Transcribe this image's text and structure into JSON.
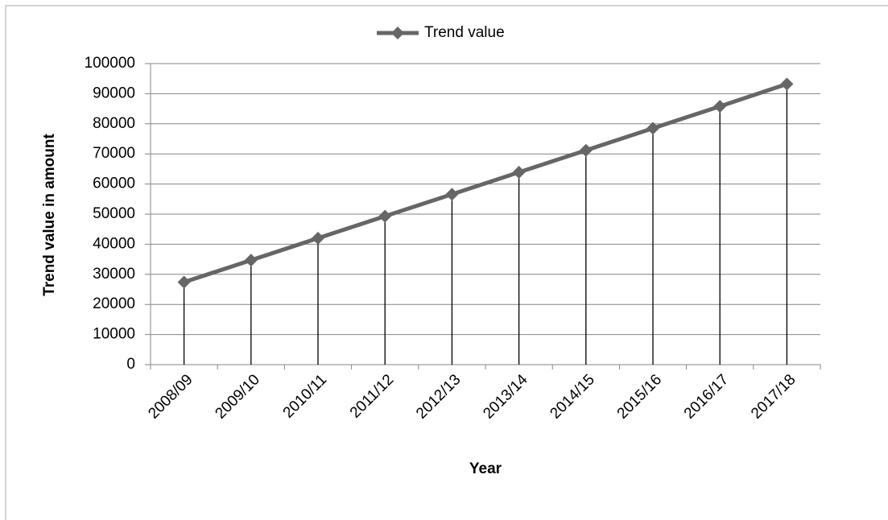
{
  "chart_data": {
    "type": "line",
    "categories": [
      "2008/09",
      "2009/10",
      "2010/11",
      "2011/12",
      "2012/13",
      "2013/14",
      "2014/15",
      "2015/16",
      "2016/17",
      "2017/18"
    ],
    "series": [
      {
        "name": "Trend value",
        "color": "#666666",
        "values": [
          27400,
          34700,
          42000,
          49300,
          56600,
          63900,
          71200,
          78500,
          85800,
          93200
        ]
      }
    ],
    "xlabel": "Year",
    "ylabel": "Trend value in amount",
    "ylim": [
      0,
      100000
    ],
    "yticks": [
      0,
      10000,
      20000,
      30000,
      40000,
      50000,
      60000,
      70000,
      80000,
      90000,
      100000
    ],
    "grid": true,
    "droplines": true,
    "legend": "top"
  }
}
